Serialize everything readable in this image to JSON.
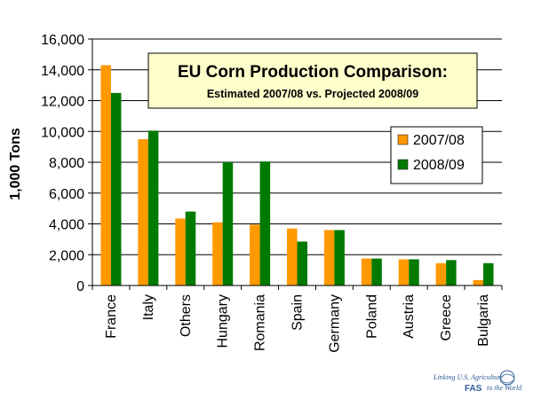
{
  "chart_data": {
    "type": "bar",
    "title": "EU Corn Production Comparison:",
    "subtitle": "Estimated 2007/08 vs. Projected 2008/09",
    "xlabel": "",
    "ylabel": "1,000 Tons",
    "ylim": [
      0,
      16000
    ],
    "yticks": [
      0,
      2000,
      4000,
      6000,
      8000,
      10000,
      12000,
      14000,
      16000
    ],
    "ytick_labels": [
      "0",
      "2,000",
      "4,000",
      "6,000",
      "8,000",
      "10,000",
      "12,000",
      "14,000",
      "16,000"
    ],
    "grid": true,
    "legend_position": "right",
    "categories": [
      "France",
      "Italy",
      "Others",
      "Hungary",
      "Romania",
      "Spain",
      "Germany",
      "Poland",
      "Austria",
      "Greece",
      "Bulgaria"
    ],
    "series": [
      {
        "name": "2007/08",
        "color": "#ff9900",
        "values": [
          14300,
          9500,
          4350,
          4100,
          3950,
          3700,
          3600,
          1750,
          1700,
          1450,
          350
        ]
      },
      {
        "name": "2008/09",
        "color": "#007a00",
        "values": [
          12500,
          10050,
          4800,
          8000,
          8050,
          2850,
          3600,
          1750,
          1700,
          1650,
          1450
        ]
      }
    ]
  },
  "logo": {
    "tagline_top": "Linking U.S. Agriculture",
    "brand": "FAS",
    "tagline_bottom": "to the World"
  }
}
